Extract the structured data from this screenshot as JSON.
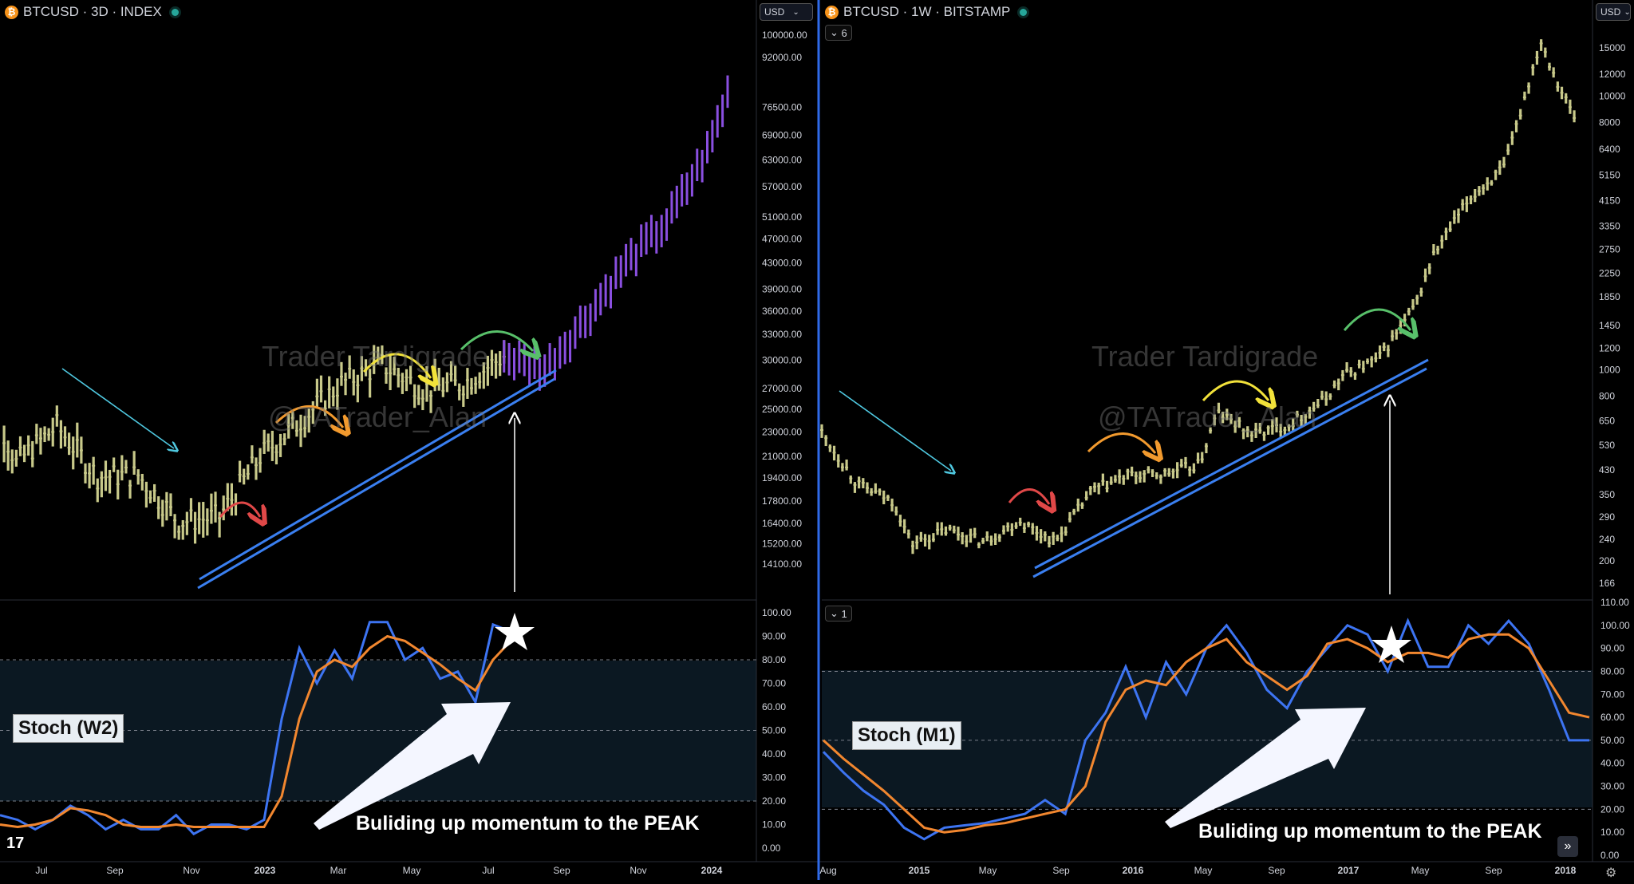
{
  "left": {
    "header": {
      "symbol": "BTCUSD · 3D · INDEX"
    },
    "currency_button": "USD",
    "watermark_line1": "Trader Tardigrade",
    "watermark_line2": "@TATrader_Alan",
    "stoch_label": "Stoch (W2)",
    "caption": "Buliding up momentum to the PEAK"
  },
  "right": {
    "header": {
      "symbol": "BTCUSD · 1W · BITSTAMP"
    },
    "currency_button": "USD",
    "collapse_main": "6",
    "collapse_sub": "1",
    "watermark_line1": "Trader Tardigrade",
    "watermark_line2": "@TATrader_Alan",
    "stoch_label": "Stoch (M1)",
    "caption": "Buliding up momentum to the PEAK"
  },
  "tv_logo": "17",
  "nav_icon": "double-chevron-right-icon",
  "settings_icon": "gear-icon",
  "colors": {
    "candle": "#c8c98a",
    "projection": "#8a4fe0",
    "trendline": "#3a7ff0",
    "stoch_k": "#3d74f2",
    "stoch_d": "#f2872f",
    "band": "#0b1822",
    "arrow_red": "#e04848",
    "arrow_orange": "#f29a2e",
    "arrow_yellow": "#f2e23a",
    "arrow_green": "#58c06a",
    "arrow_cyan": "#4fc8e0"
  },
  "chart_data": [
    {
      "type": "bar",
      "name": "BTCUSD 3D price",
      "scale": "log",
      "y_ticks": [
        "100000.00",
        "92000.00",
        "76500.00",
        "69000.00",
        "63000.00",
        "57000.00",
        "51000.00",
        "47000.00",
        "43000.00",
        "39000.00",
        "36000.00",
        "33000.00",
        "30000.00",
        "27000.00",
        "25000.00",
        "23000.00",
        "21000.00",
        "19400.00",
        "17800.00",
        "16400.00",
        "15200.00",
        "14100.00"
      ],
      "y_tick_values": [
        100000,
        92000,
        76500,
        69000,
        63000,
        57000,
        51000,
        47000,
        43000,
        39000,
        36000,
        33000,
        30000,
        27000,
        25000,
        23000,
        21000,
        19400,
        17800,
        16400,
        15200,
        14100
      ],
      "x_ticks": [
        "Jul",
        "Sep",
        "Nov",
        "2023",
        "Mar",
        "May",
        "Jul",
        "Sep",
        "Nov",
        "2024"
      ],
      "historical_approx": [
        {
          "date": "2022-06",
          "value": 30000
        },
        {
          "date": "2022-07",
          "value": 20500
        },
        {
          "date": "2022-08",
          "value": 23500
        },
        {
          "date": "2022-09",
          "value": 19500
        },
        {
          "date": "2022-10",
          "value": 19600
        },
        {
          "date": "2022-11",
          "value": 16500
        },
        {
          "date": "2022-12",
          "value": 16800
        },
        {
          "date": "2023-01",
          "value": 21000
        },
        {
          "date": "2023-02",
          "value": 24000
        },
        {
          "date": "2023-03",
          "value": 27500
        },
        {
          "date": "2023-04",
          "value": 29500
        },
        {
          "date": "2023-05",
          "value": 27000
        },
        {
          "date": "2023-06",
          "value": 27500
        },
        {
          "date": "2023-07",
          "value": 30500
        }
      ],
      "projection_approx": [
        {
          "date": "2023-08",
          "value": 29000
        },
        {
          "date": "2023-09",
          "value": 35000
        },
        {
          "date": "2023-10",
          "value": 43000
        },
        {
          "date": "2023-11",
          "value": 50000
        },
        {
          "date": "2023-12",
          "value": 65000
        },
        {
          "date": "2024-01",
          "value": 100000
        }
      ]
    },
    {
      "type": "line",
      "name": "Stoch (W2)",
      "y_ticks": [
        "100.00",
        "90.00",
        "80.00",
        "70.00",
        "60.00",
        "50.00",
        "40.00",
        "30.00",
        "20.00",
        "10.00",
        "0.00"
      ],
      "levels": [
        80,
        50,
        20
      ],
      "series": [
        {
          "key": "k",
          "values": [
            14,
            12,
            8,
            12,
            18,
            14,
            8,
            12,
            8,
            8,
            14,
            6,
            10,
            10,
            8,
            12,
            55,
            85,
            70,
            84,
            72,
            96,
            96,
            80,
            85,
            72,
            75,
            62,
            95,
            92
          ]
        },
        {
          "key": "d",
          "values": [
            10,
            9,
            10,
            12,
            17,
            16,
            14,
            10,
            9,
            9,
            10,
            9,
            9,
            9,
            9,
            9,
            22,
            55,
            75,
            80,
            77,
            85,
            90,
            88,
            83,
            78,
            72,
            67,
            80,
            88
          ]
        }
      ]
    },
    {
      "type": "bar",
      "name": "BTCUSD 1W price",
      "scale": "log",
      "y_ticks": [
        "15000",
        "12000",
        "10000",
        "8000",
        "6400",
        "5150",
        "4150",
        "3350",
        "2750",
        "2250",
        "1850",
        "1450",
        "1200",
        "1000",
        "800",
        "650",
        "530",
        "430",
        "350",
        "290",
        "240",
        "200",
        "166"
      ],
      "y_tick_values": [
        15000,
        12000,
        10000,
        8000,
        6400,
        5150,
        4150,
        3350,
        2750,
        2250,
        1850,
        1450,
        1200,
        1000,
        800,
        650,
        530,
        430,
        350,
        290,
        240,
        200,
        166
      ],
      "x_ticks": [
        "Aug",
        "2015",
        "May",
        "Sep",
        "2016",
        "May",
        "Sep",
        "2017",
        "May",
        "Sep",
        "2018"
      ],
      "historical_approx": [
        {
          "date": "2014-08",
          "value": 590
        },
        {
          "date": "2014-10",
          "value": 380
        },
        {
          "date": "2014-12",
          "value": 330
        },
        {
          "date": "2015-01",
          "value": 230
        },
        {
          "date": "2015-03",
          "value": 260
        },
        {
          "date": "2015-05",
          "value": 235
        },
        {
          "date": "2015-07",
          "value": 280
        },
        {
          "date": "2015-09",
          "value": 235
        },
        {
          "date": "2015-11",
          "value": 360
        },
        {
          "date": "2016-01",
          "value": 410
        },
        {
          "date": "2016-03",
          "value": 415
        },
        {
          "date": "2016-05",
          "value": 450
        },
        {
          "date": "2016-06",
          "value": 700
        },
        {
          "date": "2016-08",
          "value": 580
        },
        {
          "date": "2016-10",
          "value": 630
        },
        {
          "date": "2016-12",
          "value": 780
        },
        {
          "date": "2017-01",
          "value": 950
        },
        {
          "date": "2017-03",
          "value": 1100
        },
        {
          "date": "2017-05",
          "value": 1700
        },
        {
          "date": "2017-06",
          "value": 2600
        },
        {
          "date": "2017-08",
          "value": 4200
        },
        {
          "date": "2017-10",
          "value": 5500
        },
        {
          "date": "2017-12",
          "value": 16000
        },
        {
          "date": "2018-01",
          "value": 11000
        },
        {
          "date": "2018-02",
          "value": 8000
        }
      ]
    },
    {
      "type": "line",
      "name": "Stoch (M1)",
      "y_ticks": [
        "110.00",
        "100.00",
        "90.00",
        "80.00",
        "70.00",
        "60.00",
        "50.00",
        "40.00",
        "30.00",
        "20.00",
        "10.00",
        "0.00"
      ],
      "levels": [
        80,
        50,
        20
      ],
      "series": [
        {
          "key": "k",
          "values": [
            45,
            36,
            28,
            22,
            12,
            7,
            12,
            13,
            14,
            16,
            18,
            24,
            18,
            50,
            62,
            82,
            60,
            84,
            70,
            90,
            100,
            88,
            72,
            64,
            80,
            90,
            100,
            96,
            80,
            102,
            82,
            82,
            100,
            92,
            102,
            92,
            72,
            50,
            50
          ]
        },
        {
          "key": "d",
          "values": [
            50,
            42,
            35,
            28,
            20,
            12,
            10,
            11,
            13,
            14,
            16,
            18,
            20,
            30,
            58,
            72,
            76,
            74,
            84,
            90,
            94,
            84,
            78,
            72,
            78,
            92,
            94,
            90,
            84,
            88,
            88,
            86,
            94,
            96,
            96,
            90,
            76,
            62,
            60
          ]
        }
      ]
    }
  ]
}
